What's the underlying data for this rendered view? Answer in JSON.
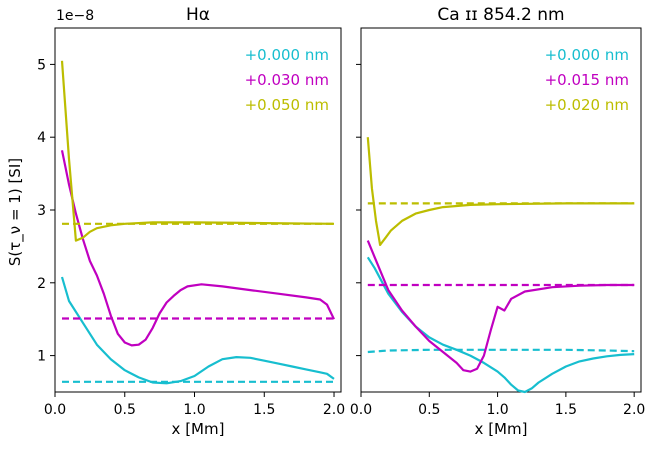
{
  "figure": {
    "ylabel": "S(τ_ν = 1) [SI]",
    "offset_text": "1e−8"
  },
  "chart_data": [
    {
      "type": "line",
      "title": "Hα",
      "xlabel": "x [Mm]",
      "xlim": [
        0.0,
        2.05
      ],
      "ylim": [
        0.5,
        5.5
      ],
      "y_scale_factor": "1e-8",
      "xticks": [
        0.0,
        0.5,
        1.0,
        1.5,
        2.0
      ],
      "xtick_labels": [
        "0.0",
        "0.5",
        "1.0",
        "1.5",
        "2.0"
      ],
      "yticks": [
        1,
        2,
        3,
        4,
        5
      ],
      "ytick_labels": [
        "1",
        "2",
        "3",
        "4",
        "5"
      ],
      "legend_position": "top-right",
      "series": [
        {
          "name": "+0.000 nm",
          "color": "#17becf",
          "style": "solid",
          "points": [
            [
              0.05,
              2.08
            ],
            [
              0.1,
              1.75
            ],
            [
              0.2,
              1.45
            ],
            [
              0.3,
              1.15
            ],
            [
              0.4,
              0.95
            ],
            [
              0.5,
              0.8
            ],
            [
              0.6,
              0.7
            ],
            [
              0.7,
              0.63
            ],
            [
              0.8,
              0.62
            ],
            [
              0.9,
              0.65
            ],
            [
              1.0,
              0.72
            ],
            [
              1.1,
              0.85
            ],
            [
              1.2,
              0.95
            ],
            [
              1.3,
              0.98
            ],
            [
              1.4,
              0.97
            ],
            [
              1.5,
              0.93
            ],
            [
              1.6,
              0.89
            ],
            [
              1.7,
              0.85
            ],
            [
              1.8,
              0.81
            ],
            [
              1.9,
              0.77
            ],
            [
              1.95,
              0.75
            ],
            [
              2.0,
              0.68
            ]
          ]
        },
        {
          "name": "+0.000 nm",
          "color": "#17becf",
          "style": "dashed",
          "points": [
            [
              0.05,
              0.64
            ],
            [
              2.0,
              0.64
            ]
          ]
        },
        {
          "name": "+0.030 nm",
          "color": "#c000c0",
          "style": "solid",
          "points": [
            [
              0.05,
              3.82
            ],
            [
              0.1,
              3.35
            ],
            [
              0.15,
              2.95
            ],
            [
              0.2,
              2.6
            ],
            [
              0.25,
              2.3
            ],
            [
              0.3,
              2.1
            ],
            [
              0.35,
              1.85
            ],
            [
              0.4,
              1.55
            ],
            [
              0.45,
              1.3
            ],
            [
              0.5,
              1.18
            ],
            [
              0.55,
              1.14
            ],
            [
              0.6,
              1.15
            ],
            [
              0.65,
              1.22
            ],
            [
              0.7,
              1.38
            ],
            [
              0.75,
              1.58
            ],
            [
              0.8,
              1.73
            ],
            [
              0.85,
              1.82
            ],
            [
              0.9,
              1.9
            ],
            [
              0.95,
              1.95
            ],
            [
              1.05,
              1.98
            ],
            [
              1.2,
              1.95
            ],
            [
              1.4,
              1.9
            ],
            [
              1.6,
              1.85
            ],
            [
              1.8,
              1.8
            ],
            [
              1.9,
              1.77
            ],
            [
              1.95,
              1.7
            ],
            [
              2.0,
              1.5
            ]
          ]
        },
        {
          "name": "+0.030 nm",
          "color": "#c000c0",
          "style": "dashed",
          "points": [
            [
              0.05,
              1.51
            ],
            [
              2.0,
              1.51
            ]
          ]
        },
        {
          "name": "+0.050 nm",
          "color": "#bcbd00",
          "style": "solid",
          "points": [
            [
              0.05,
              5.05
            ],
            [
              0.1,
              3.7
            ],
            [
              0.15,
              2.58
            ],
            [
              0.2,
              2.62
            ],
            [
              0.25,
              2.7
            ],
            [
              0.3,
              2.75
            ],
            [
              0.4,
              2.79
            ],
            [
              0.5,
              2.81
            ],
            [
              0.7,
              2.83
            ],
            [
              1.0,
              2.83
            ],
            [
              1.5,
              2.82
            ],
            [
              2.0,
              2.81
            ]
          ]
        },
        {
          "name": "+0.050 nm",
          "color": "#bcbd00",
          "style": "dashed",
          "points": [
            [
              0.05,
              2.81
            ],
            [
              2.0,
              2.81
            ]
          ]
        }
      ],
      "legend": [
        {
          "label": "+0.000 nm",
          "color": "#17becf"
        },
        {
          "label": "+0.030 nm",
          "color": "#c000c0"
        },
        {
          "label": "+0.050 nm",
          "color": "#bcbd00"
        }
      ]
    },
    {
      "type": "line",
      "title": "Ca ɪɪ 854.2 nm",
      "xlabel": "x [Mm]",
      "xlim": [
        0.0,
        2.05
      ],
      "ylim": [
        0.5,
        5.5
      ],
      "xticks": [
        0.0,
        0.5,
        1.0,
        1.5,
        2.0
      ],
      "xtick_labels": [
        "0.0",
        "0.5",
        "1.0",
        "1.5",
        "2.0"
      ],
      "yticks": [
        1,
        2,
        3,
        4,
        5
      ],
      "ytick_labels": [],
      "legend_position": "top-right",
      "series": [
        {
          "name": "+0.000 nm",
          "color": "#17becf",
          "style": "solid",
          "points": [
            [
              0.05,
              2.35
            ],
            [
              0.1,
              2.2
            ],
            [
              0.2,
              1.85
            ],
            [
              0.3,
              1.6
            ],
            [
              0.4,
              1.4
            ],
            [
              0.5,
              1.25
            ],
            [
              0.6,
              1.15
            ],
            [
              0.7,
              1.08
            ],
            [
              0.8,
              1.0
            ],
            [
              0.9,
              0.9
            ],
            [
              1.0,
              0.78
            ],
            [
              1.05,
              0.7
            ],
            [
              1.1,
              0.6
            ],
            [
              1.15,
              0.52
            ],
            [
              1.2,
              0.5
            ],
            [
              1.25,
              0.55
            ],
            [
              1.3,
              0.63
            ],
            [
              1.4,
              0.75
            ],
            [
              1.5,
              0.85
            ],
            [
              1.6,
              0.92
            ],
            [
              1.7,
              0.96
            ],
            [
              1.8,
              0.99
            ],
            [
              1.9,
              1.01
            ],
            [
              2.0,
              1.02
            ]
          ]
        },
        {
          "name": "+0.000 nm",
          "color": "#17becf",
          "style": "dashed",
          "points": [
            [
              0.05,
              1.05
            ],
            [
              0.2,
              1.07
            ],
            [
              0.5,
              1.08
            ],
            [
              1.0,
              1.08
            ],
            [
              1.5,
              1.08
            ],
            [
              1.8,
              1.07
            ],
            [
              2.0,
              1.06
            ]
          ]
        },
        {
          "name": "+0.015 nm",
          "color": "#c000c0",
          "style": "solid",
          "points": [
            [
              0.05,
              2.58
            ],
            [
              0.1,
              2.35
            ],
            [
              0.2,
              1.9
            ],
            [
              0.3,
              1.62
            ],
            [
              0.4,
              1.4
            ],
            [
              0.5,
              1.2
            ],
            [
              0.6,
              1.05
            ],
            [
              0.7,
              0.9
            ],
            [
              0.75,
              0.8
            ],
            [
              0.8,
              0.78
            ],
            [
              0.85,
              0.82
            ],
            [
              0.9,
              1.0
            ],
            [
              0.95,
              1.35
            ],
            [
              1.0,
              1.67
            ],
            [
              1.05,
              1.62
            ],
            [
              1.1,
              1.78
            ],
            [
              1.2,
              1.88
            ],
            [
              1.4,
              1.94
            ],
            [
              1.6,
              1.96
            ],
            [
              1.8,
              1.97
            ],
            [
              2.0,
              1.97
            ]
          ]
        },
        {
          "name": "+0.015 nm",
          "color": "#c000c0",
          "style": "dashed",
          "points": [
            [
              0.05,
              1.97
            ],
            [
              2.0,
              1.97
            ]
          ]
        },
        {
          "name": "+0.020 nm",
          "color": "#bcbd00",
          "style": "solid",
          "points": [
            [
              0.05,
              4.0
            ],
            [
              0.08,
              3.3
            ],
            [
              0.11,
              2.85
            ],
            [
              0.14,
              2.52
            ],
            [
              0.18,
              2.62
            ],
            [
              0.22,
              2.72
            ],
            [
              0.3,
              2.85
            ],
            [
              0.4,
              2.95
            ],
            [
              0.5,
              3.0
            ],
            [
              0.6,
              3.04
            ],
            [
              0.8,
              3.07
            ],
            [
              1.0,
              3.08
            ],
            [
              1.5,
              3.09
            ],
            [
              2.0,
              3.09
            ]
          ]
        },
        {
          "name": "+0.020 nm",
          "color": "#bcbd00",
          "style": "dashed",
          "points": [
            [
              0.05,
              3.09
            ],
            [
              2.0,
              3.09
            ]
          ]
        }
      ],
      "legend": [
        {
          "label": "+0.000 nm",
          "color": "#17becf"
        },
        {
          "label": "+0.015 nm",
          "color": "#c000c0"
        },
        {
          "label": "+0.020 nm",
          "color": "#bcbd00"
        }
      ]
    }
  ]
}
